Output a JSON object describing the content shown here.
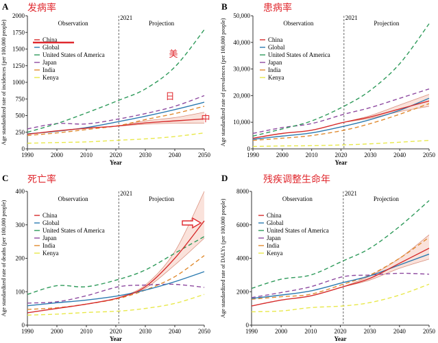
{
  "colors": {
    "China": "#d62b2b",
    "Global": "#2a7ab0",
    "United States of America": "#2e9a5a",
    "Japan": "#8e4aa0",
    "India": "#e08a2e",
    "Kenya": "#e8e84a",
    "annotation": "#e0282e"
  },
  "chart_data": [
    {
      "panel": "A",
      "cn_title": "发病率",
      "type": "line",
      "xlabel": "Year",
      "ylabel": "Age standardized rate of incidences (per 100,000 people)",
      "ylim": [
        0,
        2000
      ],
      "yticks": [
        "0",
        "250",
        "500",
        "750",
        "1000",
        "1250",
        "1500",
        "1750",
        "2000"
      ],
      "ytick_values": [
        0,
        250,
        500,
        750,
        1000,
        1250,
        1500,
        1750,
        2000
      ],
      "xlim": [
        1990,
        2050
      ],
      "xticks": [
        "1990",
        "2000",
        "2010",
        "2020",
        "2030",
        "2040",
        "2050"
      ],
      "divider_label": "2021",
      "left_label": "Observation",
      "right_label": "Projection",
      "x": [
        1990,
        2000,
        2010,
        2021,
        2030,
        2040,
        2050
      ],
      "series": [
        {
          "name": "China",
          "values": [
            220,
            270,
            310,
            345,
            390,
            420,
            450
          ],
          "band_x": [
            2021,
            2030,
            2040,
            2050
          ],
          "band_lower": [
            345,
            370,
            385,
            385
          ],
          "band_upper": [
            345,
            420,
            470,
            550
          ]
        },
        {
          "name": "Global",
          "values": [
            225,
            265,
            320,
            410,
            490,
            590,
            700
          ]
        },
        {
          "name": "United States of America",
          "values": [
            250,
            380,
            540,
            730,
            900,
            1230,
            1790
          ]
        },
        {
          "name": "Japan",
          "values": [
            300,
            380,
            375,
            450,
            530,
            640,
            800
          ]
        },
        {
          "name": "India",
          "values": [
            200,
            240,
            290,
            350,
            440,
            530,
            640
          ]
        },
        {
          "name": "Kenya",
          "values": [
            85,
            95,
            105,
            130,
            150,
            185,
            240
          ]
        }
      ],
      "annotations": [
        "美",
        "日",
        "中"
      ],
      "grid": false,
      "legend": "top-left"
    },
    {
      "panel": "B",
      "cn_title": "患病率",
      "type": "line",
      "xlabel": "Year",
      "ylabel": "Age standardized rate of prevalences (per 100,000 people)",
      "ylim": [
        0,
        50000
      ],
      "yticks": [
        "0",
        "10,000",
        "20,000",
        "30,000",
        "40,000",
        "50,000"
      ],
      "ytick_values": [
        0,
        10000,
        20000,
        30000,
        40000,
        50000
      ],
      "xlim": [
        1990,
        2050
      ],
      "xticks": [
        "1990",
        "2000",
        "2010",
        "2020",
        "2030",
        "2040",
        "2050"
      ],
      "divider_label": "2021",
      "left_label": "Observation",
      "right_label": "Projection",
      "x": [
        1990,
        2000,
        2010,
        2021,
        2030,
        2040,
        2050
      ],
      "series": [
        {
          "name": "China",
          "values": [
            4000,
            5800,
            7000,
            10000,
            12000,
            15000,
            18000
          ],
          "band_x": [
            2021,
            2030,
            2040,
            2050
          ],
          "band_lower": [
            10000,
            11500,
            14000,
            16000
          ],
          "band_upper": [
            10000,
            12500,
            16500,
            20500
          ]
        },
        {
          "name": "Global",
          "values": [
            3600,
            4800,
            6000,
            8500,
            11000,
            14500,
            19000
          ]
        },
        {
          "name": "United States of America",
          "values": [
            4800,
            7500,
            10500,
            16000,
            22000,
            32000,
            47000
          ]
        },
        {
          "name": "Japan",
          "values": [
            5800,
            8000,
            9500,
            13000,
            15500,
            19000,
            22500
          ]
        },
        {
          "name": "India",
          "values": [
            3200,
            4000,
            5000,
            7000,
            9500,
            13000,
            17000
          ]
        },
        {
          "name": "Kenya",
          "values": [
            900,
            1100,
            1200,
            1500,
            1900,
            2500,
            3200
          ]
        }
      ],
      "annotations": [],
      "grid": false,
      "legend": "top-left"
    },
    {
      "panel": "C",
      "cn_title": "死亡率",
      "type": "line",
      "xlabel": "Year",
      "ylabel": "Age standardized rate of deaths (per 100,000 people)",
      "ylim": [
        0,
        400
      ],
      "yticks": [
        "0",
        "100",
        "200",
        "300",
        "400"
      ],
      "ytick_values": [
        0,
        100,
        200,
        300,
        400
      ],
      "xlim": [
        1990,
        2050
      ],
      "xticks": [
        "1990",
        "2000",
        "2010",
        "2020",
        "2030",
        "2040",
        "2050"
      ],
      "divider_label": "2021",
      "left_label": "Observation",
      "right_label": "Projection",
      "x": [
        1990,
        2000,
        2010,
        2021,
        2030,
        2040,
        2050
      ],
      "series": [
        {
          "name": "China",
          "values": [
            37,
            50,
            63,
            82,
            115,
            200,
            312
          ],
          "band_x": [
            2021,
            2030,
            2040,
            2050
          ],
          "band_lower": [
            82,
            110,
            180,
            260
          ],
          "band_upper": [
            82,
            120,
            220,
            400
          ]
        },
        {
          "name": "Global",
          "values": [
            58,
            67,
            75,
            88,
            105,
            130,
            160
          ]
        },
        {
          "name": "United States of America",
          "values": [
            92,
            118,
            115,
            137,
            165,
            215,
            265
          ]
        },
        {
          "name": "Japan",
          "values": [
            66,
            70,
            88,
            115,
            120,
            122,
            113
          ]
        },
        {
          "name": "India",
          "values": [
            47,
            52,
            63,
            80,
            105,
            145,
            208
          ]
        },
        {
          "name": "Kenya",
          "values": [
            30,
            33,
            38,
            42,
            50,
            65,
            92
          ]
        }
      ],
      "annotations": [
        "arrow"
      ],
      "grid": false,
      "legend": "top-left"
    },
    {
      "panel": "D",
      "cn_title": "残疾调整生命年",
      "type": "line",
      "xlabel": "Year",
      "ylabel": "Age standardized rate of DALYs (per 100,000 people)",
      "ylim": [
        0,
        8000
      ],
      "yticks": [
        "0",
        "2000",
        "4000",
        "6000",
        "8000"
      ],
      "ytick_values": [
        0,
        2000,
        4000,
        6000,
        8000
      ],
      "xlim": [
        1990,
        2050
      ],
      "xticks": [
        "1990",
        "2000",
        "2010",
        "2020",
        "2030",
        "2040",
        "2050"
      ],
      "divider_label": "2021",
      "left_label": "Observation",
      "right_label": "Projection",
      "x": [
        1990,
        2000,
        2010,
        2021,
        2030,
        2040,
        2050
      ],
      "series": [
        {
          "name": "China",
          "values": [
            1150,
            1500,
            1750,
            2300,
            2800,
            3700,
            4600
          ],
          "band_x": [
            2021,
            2030,
            2040,
            2050
          ],
          "band_lower": [
            2300,
            2700,
            3400,
            3950
          ],
          "band_upper": [
            2300,
            2950,
            4000,
            5400
          ]
        },
        {
          "name": "Global",
          "values": [
            1600,
            1800,
            2050,
            2550,
            2950,
            3600,
            4250
          ]
        },
        {
          "name": "United States of America",
          "values": [
            2200,
            2750,
            3000,
            3850,
            4600,
            5900,
            7450
          ]
        },
        {
          "name": "Japan",
          "values": [
            1650,
            1950,
            2300,
            2900,
            3000,
            3100,
            3050
          ]
        },
        {
          "name": "India",
          "values": [
            1550,
            1700,
            1850,
            2450,
            3000,
            4000,
            5250
          ]
        },
        {
          "name": "Kenya",
          "values": [
            800,
            850,
            1050,
            1150,
            1350,
            1800,
            2450
          ]
        }
      ],
      "annotations": [],
      "grid": false,
      "legend": "top-left"
    }
  ]
}
